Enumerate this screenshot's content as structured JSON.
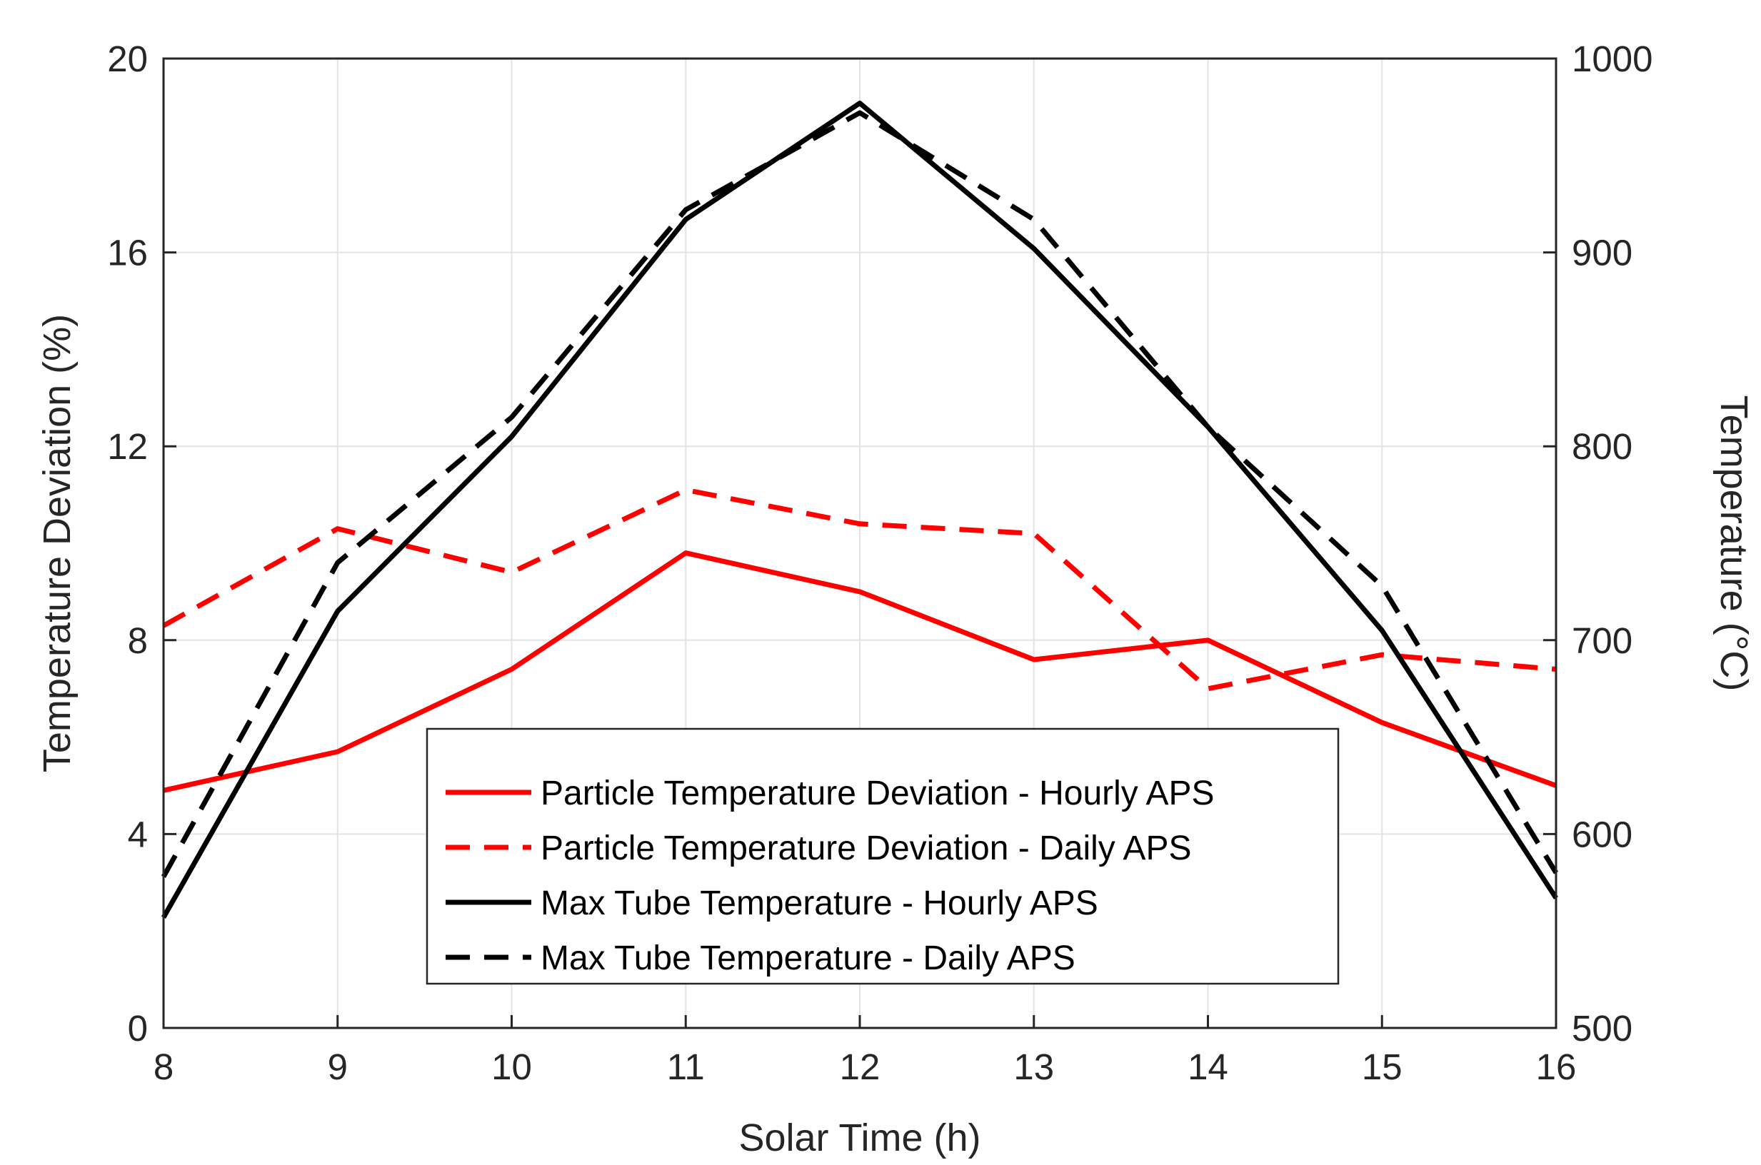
{
  "chart_data": {
    "type": "line",
    "xlabel": "Solar Time (h)",
    "ylabel_left": "Temperature Deviation (%)",
    "ylabel_right": "Temperature (°C)",
    "x": [
      8,
      9,
      10,
      11,
      12,
      13,
      14,
      15,
      16
    ],
    "xlim": [
      8,
      16
    ],
    "xticks": [
      "8",
      "9",
      "10",
      "11",
      "12",
      "13",
      "14",
      "15",
      "16"
    ],
    "ylim_left": [
      0,
      20
    ],
    "yticks_left": [
      "0",
      "4",
      "8",
      "12",
      "16",
      "20"
    ],
    "ylim_right": [
      500,
      1000
    ],
    "yticks_right": [
      "500",
      "600",
      "700",
      "800",
      "900",
      "1000"
    ],
    "grid": true,
    "legend_position": "lower-center",
    "series": [
      {
        "name": "Particle Temperature Deviation - Hourly APS",
        "axis": "left",
        "color": "#ff0000",
        "dash": "solid",
        "values": [
          4.9,
          5.7,
          7.4,
          9.8,
          9.0,
          7.6,
          8.0,
          6.3,
          5.0
        ]
      },
      {
        "name": "Particle Temperature Deviation - Daily APS",
        "axis": "left",
        "color": "#ff0000",
        "dash": "dashed",
        "values": [
          8.3,
          10.3,
          9.4,
          11.1,
          10.4,
          10.2,
          7.0,
          7.7,
          7.4
        ]
      },
      {
        "name": "Max Tube Temperature - Hourly APS",
        "axis": "right",
        "color": "#000000",
        "dash": "solid",
        "values": [
          557,
          715,
          805,
          917,
          977,
          902,
          810,
          705,
          567
        ]
      },
      {
        "name": "Max Tube Temperature - Daily APS",
        "axis": "right",
        "color": "#000000",
        "dash": "dashed",
        "values": [
          578,
          740,
          815,
          922,
          972,
          917,
          810,
          728,
          580
        ]
      }
    ]
  }
}
